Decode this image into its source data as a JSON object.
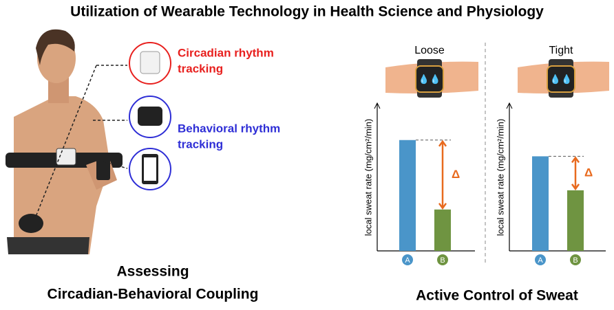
{
  "title": "Utilization of Wearable Technology in Health Science and Physiology",
  "left_panel": {
    "devices": [
      {
        "label_lines": [
          "Circadian rhythm",
          "tracking"
        ],
        "color": "#e8201e"
      },
      {
        "label_lines": [
          "Behavioral rhythm",
          "tracking"
        ],
        "color": "#2e2ed6"
      }
    ],
    "caption_lines": [
      "Assessing",
      "Circadian-Behavioral Coupling"
    ]
  },
  "chart_data": [
    {
      "type": "bar",
      "title": "Loose",
      "y_label": "local sweat rate (mg/cm²/min)",
      "categories": [
        "A",
        "B"
      ],
      "values": [
        75,
        28
      ],
      "colors": [
        "#4a95c9",
        "#6f9441"
      ],
      "ylim": [
        0,
        100
      ],
      "annotation": "Δ"
    },
    {
      "type": "bar",
      "title": "Tight",
      "y_label": "local sweat rate (mg/cm²/min)",
      "categories": [
        "A",
        "B"
      ],
      "values": [
        64,
        41
      ],
      "colors": [
        "#4a95c9",
        "#6f9441"
      ],
      "ylim": [
        0,
        100
      ],
      "annotation": "Δ"
    }
  ],
  "right_caption": "Active Control of Sweat"
}
